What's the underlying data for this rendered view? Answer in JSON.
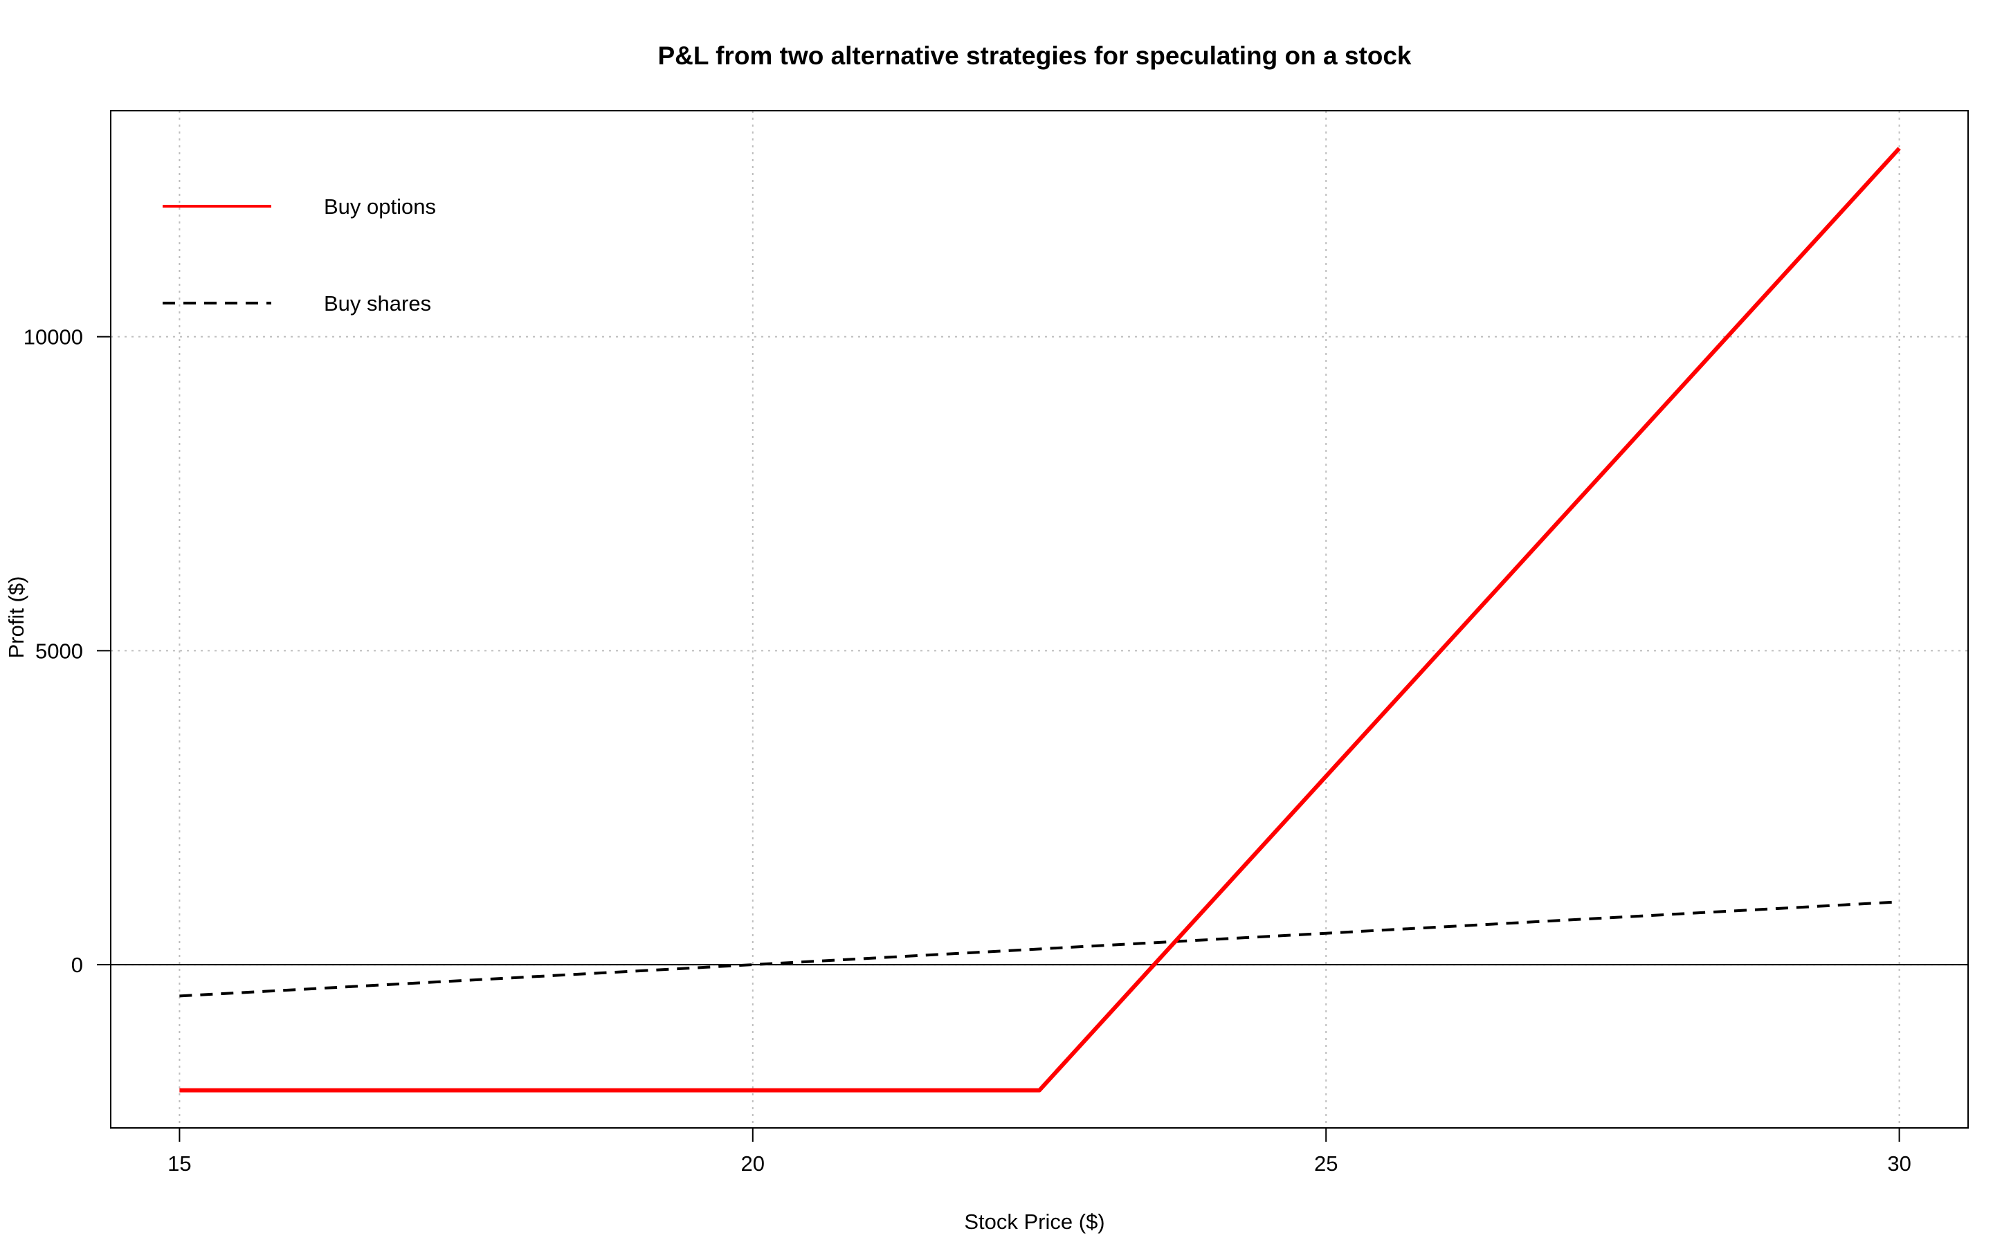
{
  "chart_data": {
    "type": "line",
    "title": "P&L from two alternative strategies for speculating on a stock",
    "xlabel": "Stock Price ($)",
    "ylabel": "Profit ($)",
    "xlim": [
      14.4,
      30.6
    ],
    "ylim": [
      -2600,
      13600
    ],
    "xticks": [
      15,
      20,
      25,
      30
    ],
    "yticks": [
      0,
      5000,
      10000
    ],
    "grid": true,
    "legend_position": "top-left",
    "reference_line_y": 0,
    "series": [
      {
        "name": "Buy options",
        "color": "#ff0000",
        "style": "solid",
        "x": [
          15,
          22.5,
          30
        ],
        "y": [
          -2000,
          -2000,
          13000
        ]
      },
      {
        "name": "Buy shares",
        "color": "#000000",
        "style": "dashed",
        "x": [
          15,
          20,
          25,
          30
        ],
        "y": [
          -500,
          0,
          500,
          1000
        ]
      }
    ]
  }
}
